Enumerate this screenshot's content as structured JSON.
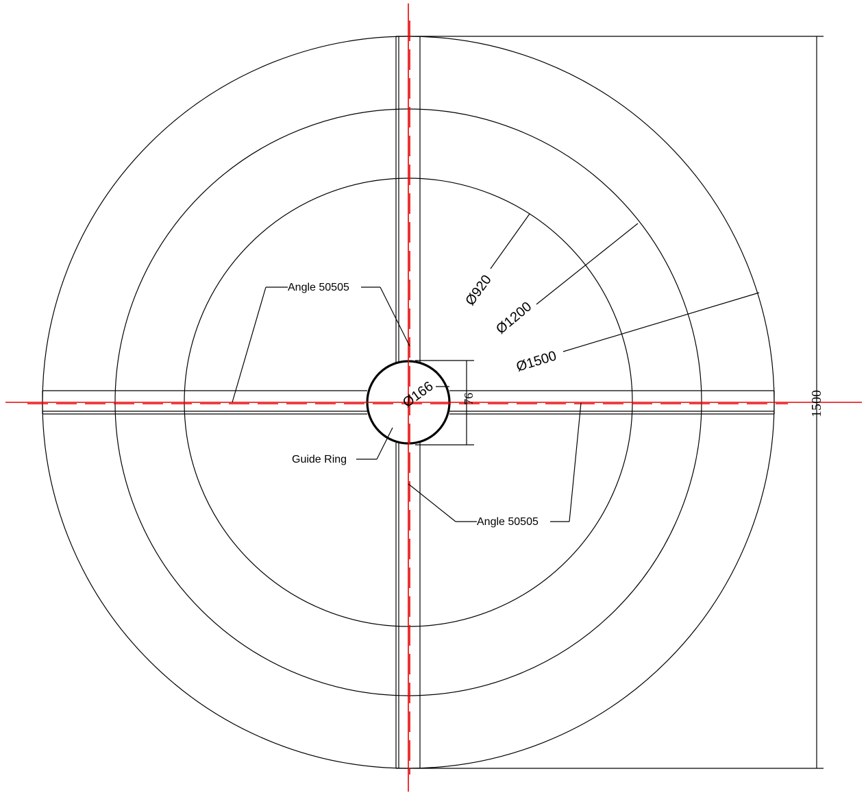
{
  "diameters": {
    "d920": "Ø920",
    "d1200": "Ø1200",
    "d1500": "Ø1500",
    "d166": "Ø166"
  },
  "dimensions": {
    "ring_height": "76",
    "overall": "1500"
  },
  "labels": {
    "angle_upper": "Angle 50505",
    "angle_lower": "Angle 50505",
    "guide_ring": "Guide Ring"
  },
  "colors": {
    "centerline": "#e60000",
    "outline": "#000000"
  }
}
